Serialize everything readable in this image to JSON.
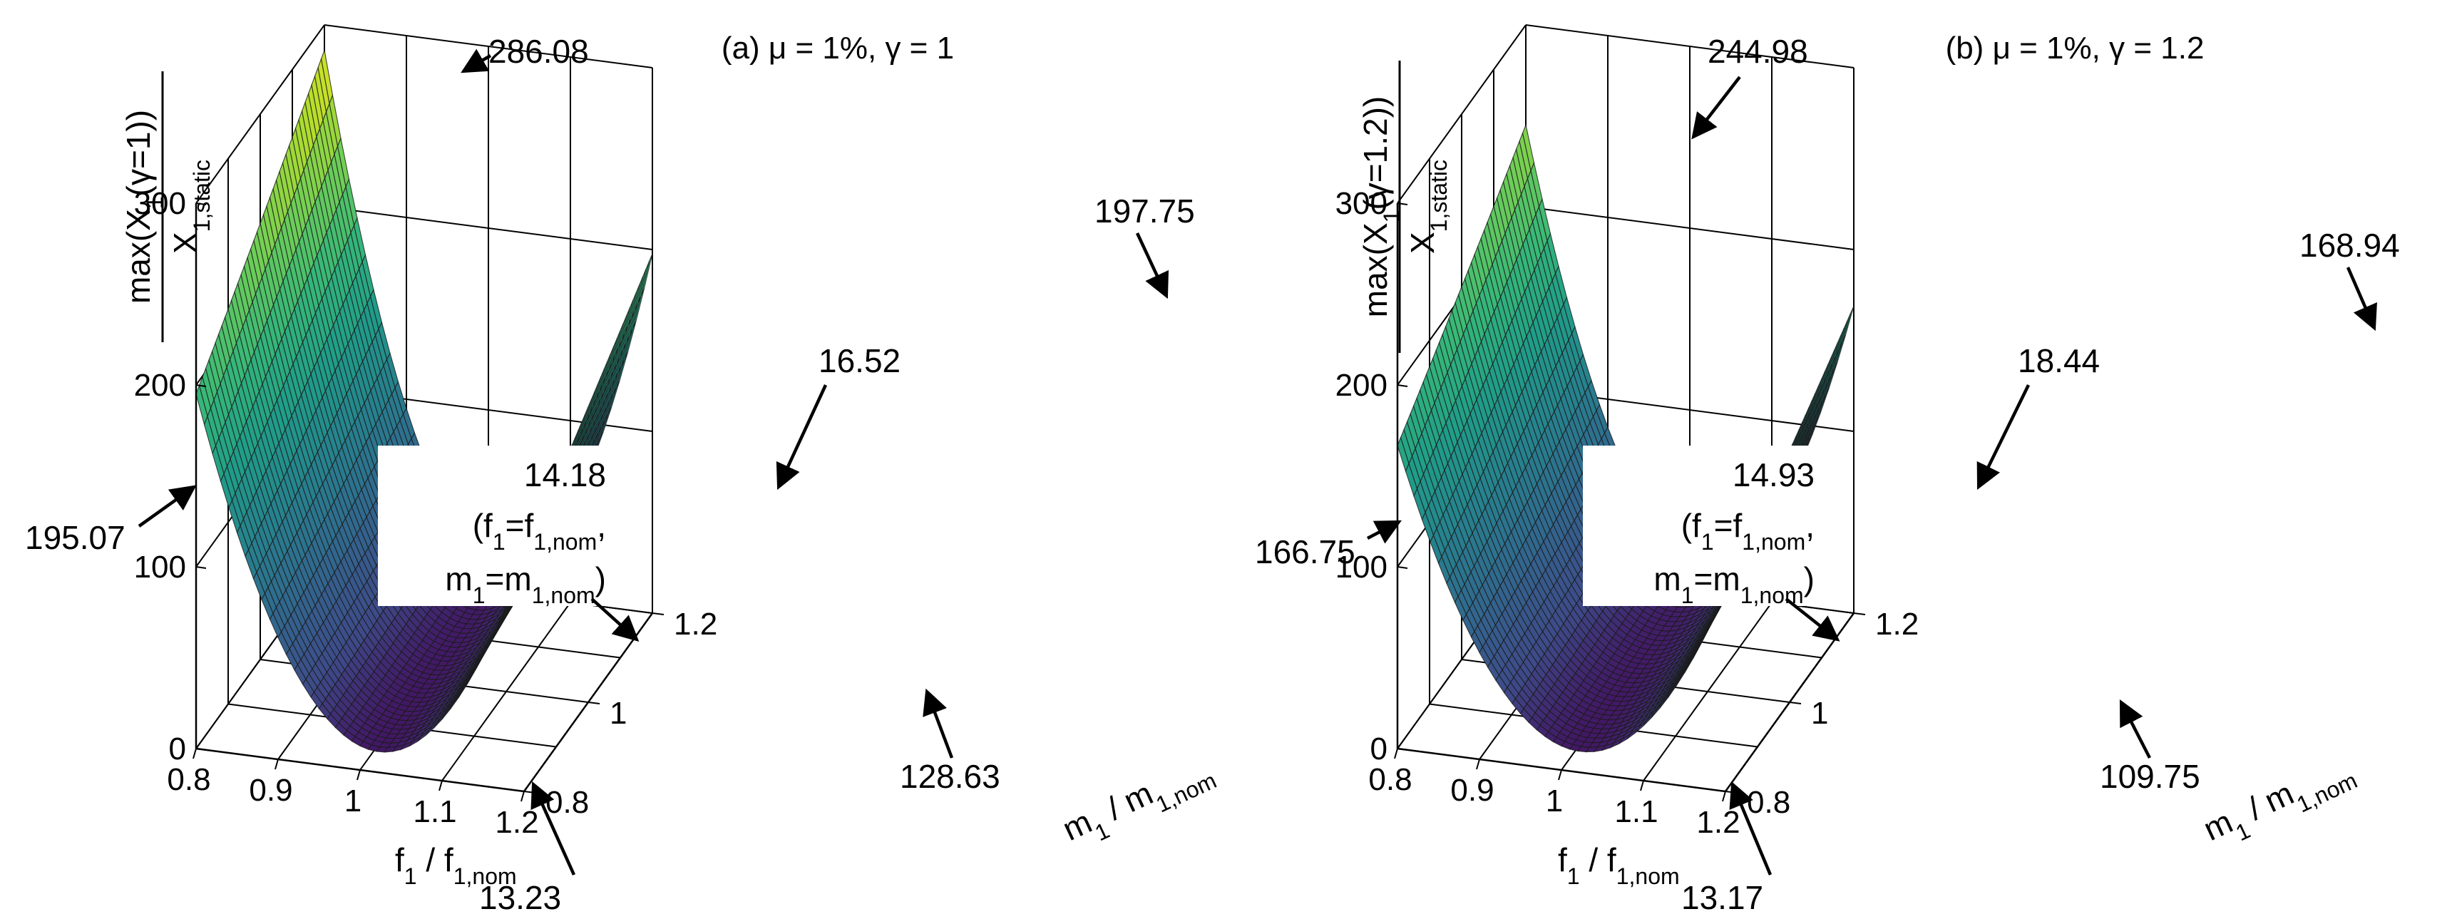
{
  "figure": {
    "colormap": [
      "#440154",
      "#3e4a89",
      "#31688e",
      "#26828e",
      "#1f9e89",
      "#35b779",
      "#6ece58",
      "#b5de2b",
      "#fde725"
    ],
    "surface_model": "value = a*(f - f0)^2 + b*(f - f0)*(m - 1) + c*(m - 1)^2 + d; quadratic fit through the labelled points"
  },
  "chart_data": [
    {
      "type": "surface3d",
      "title": "(a) μ = 1%, γ = 1",
      "zlabel_numerator": "max(X",
      "zlabel_numerator_sub": "1",
      "zlabel_numerator_end": "(γ=1))",
      "zlabel_denominator": "X",
      "zlabel_denominator_sub": "1,static",
      "xlabel": "f",
      "xlabel_sub1": "1",
      "xlabel_mid": " / f",
      "xlabel_sub2": "1,nom",
      "ylabel": "m",
      "ylabel_sub1": "1",
      "ylabel_mid": " / m",
      "ylabel_sub2": "1,nom",
      "xlim": [
        0.8,
        1.2
      ],
      "ylim": [
        0.8,
        1.2
      ],
      "zlim": [
        0,
        300
      ],
      "xticks": [
        "0.8",
        "0.9",
        "1",
        "1.1",
        "1.2"
      ],
      "yticks": [
        "0.8",
        "1",
        "1.2"
      ],
      "zticks": [
        "0",
        "100",
        "200",
        "300"
      ],
      "grid": true,
      "annotations": {
        "corner_f08_m12": "286.08",
        "corner_f12_m12": "197.75",
        "edge_mid_m12": "16.52",
        "corner_f08_m08": "195.07",
        "nominal_value": "14.18",
        "nominal_line1_pre": "(f",
        "nominal_line1_sub1": "1",
        "nominal_line1_mid": "=f",
        "nominal_line1_sub2": "1,nom",
        "nominal_line1_end": ",",
        "nominal_line2_pre": "m",
        "nominal_line2_sub1": "1",
        "nominal_line2_mid": "=m",
        "nominal_line2_sub2": "1,nom",
        "nominal_line2_end": ")",
        "corner_f12_m08": "128.63",
        "edge_mid_m08": "13.23"
      },
      "points": [
        {
          "f": 0.8,
          "m": 1.2,
          "z": 286.08
        },
        {
          "f": 1.2,
          "m": 1.2,
          "z": 197.75
        },
        {
          "f": 1.0,
          "m": 1.2,
          "z": 16.52
        },
        {
          "f": 0.8,
          "m": 0.8,
          "z": 195.07
        },
        {
          "f": 1.0,
          "m": 1.0,
          "z": 14.18
        },
        {
          "f": 1.2,
          "m": 0.8,
          "z": 128.63
        },
        {
          "f": 1.0,
          "m": 0.8,
          "z": 13.23
        }
      ]
    },
    {
      "type": "surface3d",
      "title": "(b) μ = 1%, γ = 1.2",
      "zlabel_numerator": "max(X",
      "zlabel_numerator_sub": "1",
      "zlabel_numerator_end": "(γ=1.2))",
      "zlabel_denominator": "X",
      "zlabel_denominator_sub": "1,static",
      "xlabel": "f",
      "xlabel_sub1": "1",
      "xlabel_mid": " / f",
      "xlabel_sub2": "1,nom",
      "ylabel": "m",
      "ylabel_sub1": "1",
      "ylabel_mid": " / m",
      "ylabel_sub2": "1,nom",
      "xlim": [
        0.8,
        1.2
      ],
      "ylim": [
        0.8,
        1.2
      ],
      "zlim": [
        0,
        300
      ],
      "xticks": [
        "0.8",
        "0.9",
        "1",
        "1.1",
        "1.2"
      ],
      "yticks": [
        "0.8",
        "1",
        "1.2"
      ],
      "zticks": [
        "0",
        "100",
        "200",
        "300"
      ],
      "grid": true,
      "annotations": {
        "corner_f08_m12": "244.98",
        "corner_f12_m12": "168.94",
        "edge_mid_m12": "18.44",
        "corner_f08_m08": "166.75",
        "nominal_value": "14.93",
        "nominal_line1_pre": "(f",
        "nominal_line1_sub1": "1",
        "nominal_line1_mid": "=f",
        "nominal_line1_sub2": "1,nom",
        "nominal_line1_end": ",",
        "nominal_line2_pre": "m",
        "nominal_line2_sub1": "1",
        "nominal_line2_mid": "=m",
        "nominal_line2_sub2": "1,nom",
        "nominal_line2_end": ")",
        "corner_f12_m08": "109.75",
        "edge_mid_m08": "13.17"
      },
      "points": [
        {
          "f": 0.8,
          "m": 1.2,
          "z": 244.98
        },
        {
          "f": 1.2,
          "m": 1.2,
          "z": 168.94
        },
        {
          "f": 1.0,
          "m": 1.2,
          "z": 18.44
        },
        {
          "f": 0.8,
          "m": 0.8,
          "z": 166.75
        },
        {
          "f": 1.0,
          "m": 1.0,
          "z": 14.93
        },
        {
          "f": 1.2,
          "m": 0.8,
          "z": 109.75
        },
        {
          "f": 1.0,
          "m": 0.8,
          "z": 13.17
        }
      ]
    }
  ]
}
